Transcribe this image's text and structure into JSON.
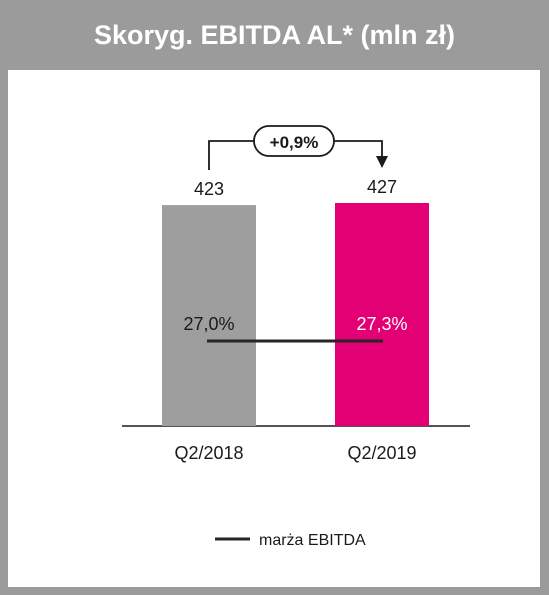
{
  "header": {
    "title": "Skoryg. EBITDA AL* (mln zł)"
  },
  "colors": {
    "background": "#9b9b9b",
    "bar_2018": "#9e9e9e",
    "bar_2019": "#e20074",
    "line": "#262626",
    "panel": "#ffffff"
  },
  "chart_data": {
    "type": "bar",
    "title": "Skoryg. EBITDA AL* (mln zł)",
    "categories": [
      "Q2/2018",
      "Q2/2019"
    ],
    "series": [
      {
        "values": [
          423,
          427
        ]
      },
      {
        "name": "marża EBITDA",
        "type": "line",
        "values_label": [
          "27,0%",
          "27,3%"
        ],
        "values": [
          27.0,
          27.3
        ]
      }
    ],
    "bar_labels": [
      "423",
      "427"
    ],
    "change_annotation": "+0,9%",
    "legend": {
      "position": "bottom",
      "entries": [
        "marża EBITDA"
      ]
    },
    "grid": false
  }
}
